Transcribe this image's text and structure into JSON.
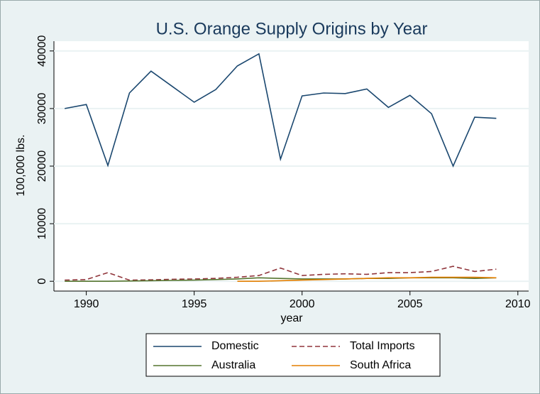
{
  "chart_data": {
    "type": "line",
    "title": "U.S. Orange Supply Origins by Year",
    "xlabel": "year",
    "ylabel": "100,000 lbs.",
    "x": [
      1989,
      1990,
      1991,
      1992,
      1993,
      1994,
      1995,
      1996,
      1997,
      1998,
      1999,
      2000,
      2001,
      2002,
      2003,
      2004,
      2005,
      2006,
      2007,
      2008,
      2009
    ],
    "series": [
      {
        "name": "Domestic",
        "color": "#1a476f",
        "dash": false,
        "values": [
          30000,
          30700,
          20100,
          32700,
          36500,
          33800,
          31100,
          33300,
          37400,
          39500,
          21200,
          32200,
          32700,
          32600,
          33400,
          30200,
          32300,
          29100,
          20000,
          28500,
          28300
        ]
      },
      {
        "name": "Total Imports",
        "color": "#90353b",
        "dash": true,
        "values": [
          200,
          300,
          1500,
          200,
          250,
          350,
          400,
          500,
          700,
          1000,
          2300,
          1000,
          1200,
          1300,
          1200,
          1500,
          1500,
          1700,
          2600,
          1700,
          2100
        ]
      },
      {
        "name": "Australia",
        "color": "#55752f",
        "dash": false,
        "values": [
          0,
          0,
          0,
          50,
          100,
          150,
          200,
          300,
          400,
          600,
          500,
          400,
          400,
          400,
          500,
          500,
          600,
          600,
          600,
          500,
          600
        ]
      },
      {
        "name": "South Africa",
        "color": "#e37e00",
        "dash": false,
        "values": [
          null,
          null,
          null,
          null,
          null,
          null,
          null,
          null,
          0,
          0,
          100,
          200,
          300,
          400,
          500,
          600,
          600,
          700,
          700,
          700,
          600
        ]
      }
    ],
    "xlim": [
      1988.5,
      2010.5
    ],
    "xticks": [
      1990,
      1995,
      2000,
      2005,
      2010
    ],
    "ylim": [
      -1700,
      41700
    ],
    "yticks": [
      0,
      10000,
      20000,
      30000,
      40000
    ],
    "grid": true
  }
}
